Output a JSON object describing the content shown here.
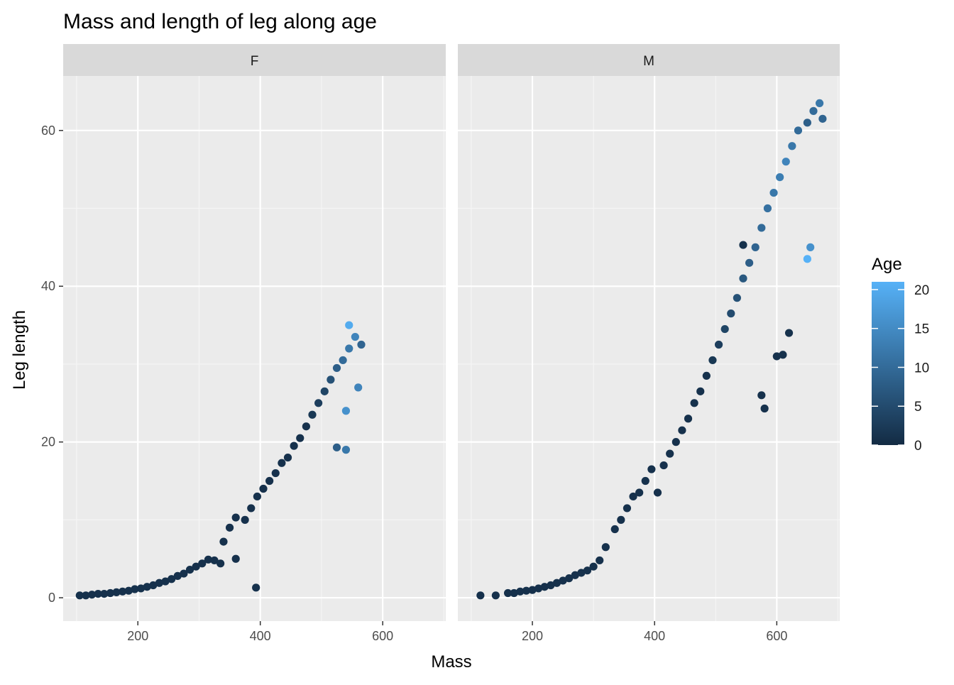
{
  "chart_data": {
    "type": "scatter",
    "title": "Mass and length of leg along age",
    "xlabel": "Mass",
    "ylabel": "Leg length",
    "xlim": [
      78,
      703
    ],
    "ylim": [
      -3,
      67
    ],
    "x_ticks": [
      200,
      400,
      600
    ],
    "y_ticks": [
      0,
      20,
      40,
      60
    ],
    "grid": true,
    "legend": {
      "title": "Age",
      "position": "right",
      "type": "colorbar",
      "ticks": [
        0,
        5,
        10,
        15,
        20
      ],
      "range": [
        0,
        21
      ],
      "color_low": "#132B43",
      "color_high": "#56B1F7"
    },
    "facets": [
      {
        "label": "F",
        "points": [
          {
            "x": 105,
            "y": 0.3,
            "age": 1
          },
          {
            "x": 115,
            "y": 0.3,
            "age": 1
          },
          {
            "x": 125,
            "y": 0.4,
            "age": 1
          },
          {
            "x": 135,
            "y": 0.5,
            "age": 1
          },
          {
            "x": 145,
            "y": 0.5,
            "age": 1
          },
          {
            "x": 155,
            "y": 0.6,
            "age": 1
          },
          {
            "x": 165,
            "y": 0.7,
            "age": 1
          },
          {
            "x": 175,
            "y": 0.8,
            "age": 1
          },
          {
            "x": 185,
            "y": 0.9,
            "age": 1
          },
          {
            "x": 195,
            "y": 1.1,
            "age": 1
          },
          {
            "x": 205,
            "y": 1.2,
            "age": 1
          },
          {
            "x": 215,
            "y": 1.4,
            "age": 1
          },
          {
            "x": 225,
            "y": 1.6,
            "age": 1
          },
          {
            "x": 235,
            "y": 1.9,
            "age": 1
          },
          {
            "x": 245,
            "y": 2.1,
            "age": 1
          },
          {
            "x": 255,
            "y": 2.4,
            "age": 1
          },
          {
            "x": 265,
            "y": 2.8,
            "age": 1
          },
          {
            "x": 275,
            "y": 3.1,
            "age": 1
          },
          {
            "x": 285,
            "y": 3.6,
            "age": 1
          },
          {
            "x": 295,
            "y": 4.0,
            "age": 1
          },
          {
            "x": 305,
            "y": 4.4,
            "age": 1
          },
          {
            "x": 315,
            "y": 4.9,
            "age": 1
          },
          {
            "x": 325,
            "y": 4.8,
            "age": 1
          },
          {
            "x": 335,
            "y": 4.4,
            "age": 1
          },
          {
            "x": 340,
            "y": 7.2,
            "age": 1
          },
          {
            "x": 350,
            "y": 9.0,
            "age": 1
          },
          {
            "x": 360,
            "y": 10.3,
            "age": 1
          },
          {
            "x": 360,
            "y": 5.0,
            "age": 1
          },
          {
            "x": 375,
            "y": 10.0,
            "age": 1
          },
          {
            "x": 385,
            "y": 11.5,
            "age": 1
          },
          {
            "x": 393,
            "y": 1.3,
            "age": 1
          },
          {
            "x": 395,
            "y": 13.0,
            "age": 1
          },
          {
            "x": 405,
            "y": 14.0,
            "age": 1
          },
          {
            "x": 415,
            "y": 15.0,
            "age": 1
          },
          {
            "x": 425,
            "y": 16.0,
            "age": 1
          },
          {
            "x": 435,
            "y": 17.3,
            "age": 1
          },
          {
            "x": 445,
            "y": 18.0,
            "age": 1
          },
          {
            "x": 455,
            "y": 19.5,
            "age": 1
          },
          {
            "x": 465,
            "y": 20.5,
            "age": 1
          },
          {
            "x": 475,
            "y": 22.0,
            "age": 1
          },
          {
            "x": 485,
            "y": 23.5,
            "age": 2
          },
          {
            "x": 495,
            "y": 25.0,
            "age": 3
          },
          {
            "x": 505,
            "y": 26.5,
            "age": 4
          },
          {
            "x": 515,
            "y": 28.0,
            "age": 6
          },
          {
            "x": 525,
            "y": 29.5,
            "age": 8
          },
          {
            "x": 535,
            "y": 30.5,
            "age": 10
          },
          {
            "x": 545,
            "y": 32.0,
            "age": 12
          },
          {
            "x": 555,
            "y": 33.5,
            "age": 14
          },
          {
            "x": 545,
            "y": 35.0,
            "age": 20
          },
          {
            "x": 525,
            "y": 19.3,
            "age": 8
          },
          {
            "x": 540,
            "y": 19.0,
            "age": 12
          },
          {
            "x": 540,
            "y": 24.0,
            "age": 16
          },
          {
            "x": 560,
            "y": 27.0,
            "age": 14
          },
          {
            "x": 565,
            "y": 32.5,
            "age": 9
          }
        ]
      },
      {
        "label": "M",
        "points": [
          {
            "x": 115,
            "y": 0.3,
            "age": 1
          },
          {
            "x": 140,
            "y": 0.3,
            "age": 1
          },
          {
            "x": 160,
            "y": 0.6,
            "age": 1
          },
          {
            "x": 170,
            "y": 0.6,
            "age": 1
          },
          {
            "x": 180,
            "y": 0.8,
            "age": 1
          },
          {
            "x": 190,
            "y": 0.9,
            "age": 1
          },
          {
            "x": 200,
            "y": 1.0,
            "age": 1
          },
          {
            "x": 210,
            "y": 1.2,
            "age": 1
          },
          {
            "x": 220,
            "y": 1.4,
            "age": 1
          },
          {
            "x": 230,
            "y": 1.6,
            "age": 1
          },
          {
            "x": 240,
            "y": 1.9,
            "age": 1
          },
          {
            "x": 250,
            "y": 2.2,
            "age": 1
          },
          {
            "x": 260,
            "y": 2.5,
            "age": 1
          },
          {
            "x": 270,
            "y": 2.9,
            "age": 1
          },
          {
            "x": 280,
            "y": 3.2,
            "age": 1
          },
          {
            "x": 290,
            "y": 3.5,
            "age": 1
          },
          {
            "x": 300,
            "y": 4.0,
            "age": 1
          },
          {
            "x": 310,
            "y": 4.8,
            "age": 1
          },
          {
            "x": 320,
            "y": 6.5,
            "age": 1
          },
          {
            "x": 335,
            "y": 8.8,
            "age": 1
          },
          {
            "x": 345,
            "y": 10.0,
            "age": 1
          },
          {
            "x": 355,
            "y": 11.5,
            "age": 1
          },
          {
            "x": 365,
            "y": 13.0,
            "age": 1
          },
          {
            "x": 375,
            "y": 13.5,
            "age": 1
          },
          {
            "x": 385,
            "y": 15.0,
            "age": 1
          },
          {
            "x": 395,
            "y": 16.5,
            "age": 1
          },
          {
            "x": 405,
            "y": 13.5,
            "age": 1
          },
          {
            "x": 415,
            "y": 17.0,
            "age": 1
          },
          {
            "x": 425,
            "y": 18.5,
            "age": 1
          },
          {
            "x": 435,
            "y": 20.0,
            "age": 1
          },
          {
            "x": 445,
            "y": 21.5,
            "age": 1
          },
          {
            "x": 455,
            "y": 23.0,
            "age": 1
          },
          {
            "x": 465,
            "y": 25.0,
            "age": 1
          },
          {
            "x": 475,
            "y": 26.5,
            "age": 1
          },
          {
            "x": 485,
            "y": 28.5,
            "age": 1
          },
          {
            "x": 495,
            "y": 30.5,
            "age": 2
          },
          {
            "x": 505,
            "y": 32.5,
            "age": 3
          },
          {
            "x": 515,
            "y": 34.5,
            "age": 4
          },
          {
            "x": 525,
            "y": 36.5,
            "age": 5
          },
          {
            "x": 535,
            "y": 38.5,
            "age": 6
          },
          {
            "x": 545,
            "y": 41.0,
            "age": 7
          },
          {
            "x": 555,
            "y": 43.0,
            "age": 8
          },
          {
            "x": 565,
            "y": 45.0,
            "age": 9
          },
          {
            "x": 575,
            "y": 47.5,
            "age": 10
          },
          {
            "x": 585,
            "y": 50.0,
            "age": 11
          },
          {
            "x": 595,
            "y": 52.0,
            "age": 12
          },
          {
            "x": 605,
            "y": 54.0,
            "age": 13
          },
          {
            "x": 615,
            "y": 56.0,
            "age": 14
          },
          {
            "x": 625,
            "y": 58.0,
            "age": 12
          },
          {
            "x": 635,
            "y": 60.0,
            "age": 10
          },
          {
            "x": 650,
            "y": 61.0,
            "age": 8
          },
          {
            "x": 660,
            "y": 62.5,
            "age": 10
          },
          {
            "x": 670,
            "y": 63.5,
            "age": 12
          },
          {
            "x": 675,
            "y": 61.5,
            "age": 9
          },
          {
            "x": 650,
            "y": 43.5,
            "age": 21
          },
          {
            "x": 655,
            "y": 45.0,
            "age": 16
          },
          {
            "x": 575,
            "y": 26.0,
            "age": 1
          },
          {
            "x": 580,
            "y": 24.3,
            "age": 1
          },
          {
            "x": 600,
            "y": 31.0,
            "age": 1
          },
          {
            "x": 545,
            "y": 45.3,
            "age": 1
          },
          {
            "x": 610,
            "y": 31.2,
            "age": 1
          },
          {
            "x": 620,
            "y": 34.0,
            "age": 1
          }
        ]
      }
    ]
  }
}
